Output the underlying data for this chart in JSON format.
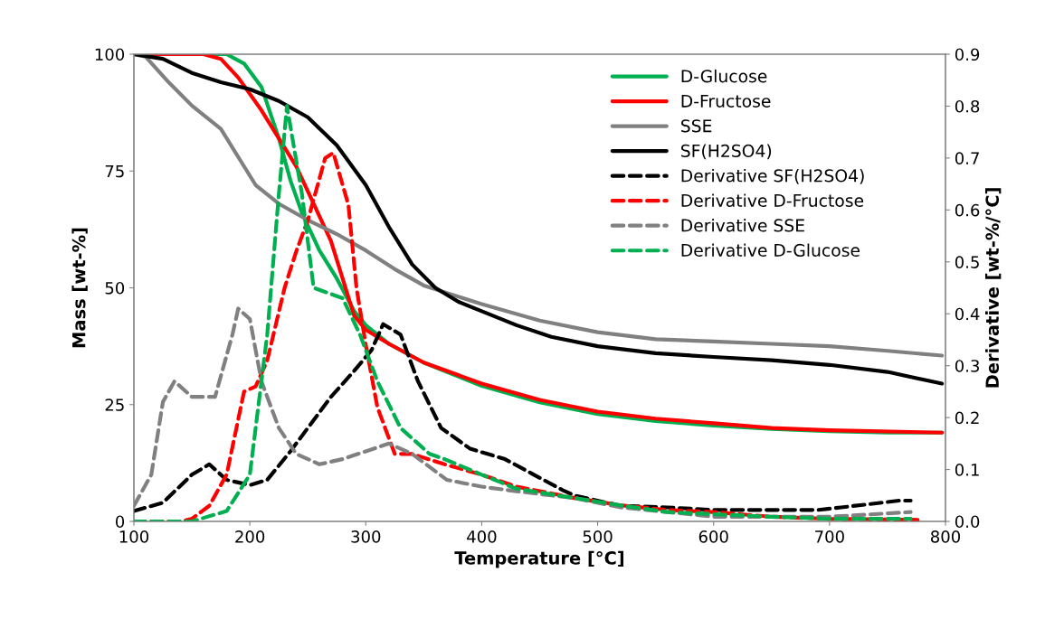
{
  "chart_data": {
    "type": "line",
    "xlabel": "Temperature [°C]",
    "ylabel": "Mass [wt-%]",
    "y2label": "Derivative [wt-%/°C]",
    "xlim": [
      100,
      800
    ],
    "xticks": [
      100,
      200,
      300,
      400,
      500,
      600,
      700,
      800
    ],
    "ylim": [
      0,
      100
    ],
    "yticks": [
      0,
      25,
      50,
      75,
      100
    ],
    "y2lim": [
      0,
      0.9
    ],
    "y2ticks": [
      {
        "value": 0,
        "label": "0.0"
      },
      0.1,
      0.2,
      0.3,
      0.4,
      0.5,
      0.6,
      0.7,
      0.8,
      0.9
    ],
    "grid": false,
    "legend": "top right",
    "marker": "none",
    "series": [
      {
        "name": "D-Glucose",
        "color": "#00b050",
        "line_style": "solid",
        "x": [
          100,
          180,
          195,
          210,
          225,
          235,
          245,
          260,
          275,
          290,
          300,
          320,
          350,
          400,
          450,
          500,
          550,
          600,
          650,
          700,
          750,
          797
        ],
        "values": [
          100,
          100,
          98,
          93,
          82,
          73,
          66,
          58,
          52,
          45,
          42,
          38,
          34,
          29,
          25.5,
          23,
          21.5,
          20.5,
          19.8,
          19.3,
          19,
          19
        ]
      },
      {
        "name": "D-Fructose",
        "color": "#ff0000",
        "line_style": "solid",
        "x": [
          100,
          160,
          175,
          190,
          210,
          225,
          240,
          255,
          270,
          280,
          290,
          300,
          320,
          350,
          400,
          450,
          500,
          550,
          600,
          650,
          700,
          797
        ],
        "values": [
          100,
          100,
          99,
          95,
          88,
          82,
          76,
          68,
          60,
          52,
          44,
          41,
          38,
          34,
          29.5,
          26,
          23.5,
          22,
          21,
          20,
          19.5,
          19
        ]
      },
      {
        "name": "SSE",
        "color": "#808080",
        "line_style": "solid",
        "x": [
          100,
          110,
          130,
          150,
          175,
          190,
          205,
          225,
          250,
          275,
          300,
          325,
          350,
          400,
          450,
          500,
          550,
          600,
          650,
          700,
          750,
          797
        ],
        "values": [
          100,
          99.5,
          94,
          89,
          84,
          78,
          72,
          68,
          64.5,
          61.5,
          58,
          54,
          50.5,
          46.5,
          43,
          40.5,
          39,
          38.5,
          38,
          37.5,
          36.5,
          35.5
        ]
      },
      {
        "name": "SF(H2SO4)",
        "color": "#000000",
        "line_style": "solid",
        "x": [
          100,
          125,
          150,
          175,
          200,
          225,
          250,
          275,
          300,
          320,
          340,
          360,
          380,
          400,
          430,
          460,
          500,
          550,
          600,
          650,
          700,
          750,
          797
        ],
        "values": [
          100,
          99,
          96,
          94,
          92.5,
          90,
          86.5,
          80.5,
          72,
          63,
          55,
          50,
          47,
          45,
          42,
          39.5,
          37.5,
          36,
          35.2,
          34.5,
          33.5,
          32,
          29.5
        ]
      },
      {
        "name": "Derivative SF(H2SO4)",
        "color": "#000000",
        "line_style": "dashed",
        "axis": "y2",
        "x": [
          100,
          125,
          150,
          165,
          180,
          200,
          215,
          235,
          250,
          270,
          290,
          305,
          315,
          330,
          345,
          365,
          390,
          420,
          445,
          470,
          480,
          520,
          560,
          600,
          640,
          690,
          710,
          760,
          770
        ],
        "values": [
          0.02,
          0.036,
          0.09,
          0.11,
          0.08,
          0.07,
          0.08,
          0.135,
          0.18,
          0.24,
          0.29,
          0.33,
          0.38,
          0.36,
          0.27,
          0.18,
          0.14,
          0.12,
          0.09,
          0.06,
          0.05,
          0.03,
          0.027,
          0.022,
          0.022,
          0.022,
          0.027,
          0.04,
          0.04
        ]
      },
      {
        "name": "Derivative D-Fructose",
        "color": "#ff0000",
        "line_style": "dashed",
        "axis": "y2",
        "x": [
          100,
          140,
          150,
          165,
          180,
          195,
          205,
          215,
          230,
          240,
          250,
          265,
          272,
          285,
          292,
          300,
          310,
          325,
          340,
          368,
          400,
          430,
          460,
          480,
          520,
          560,
          600,
          650,
          700,
          776
        ],
        "values": [
          0,
          0,
          0.005,
          0.03,
          0.09,
          0.25,
          0.26,
          0.31,
          0.45,
          0.52,
          0.58,
          0.7,
          0.71,
          0.61,
          0.45,
          0.34,
          0.22,
          0.13,
          0.13,
          0.11,
          0.09,
          0.067,
          0.054,
          0.045,
          0.031,
          0.022,
          0.018,
          0.009,
          0.005,
          0.003
        ]
      },
      {
        "name": "Derivative SSE",
        "color": "#808080",
        "line_style": "dashed",
        "axis": "y2",
        "x": [
          100,
          115,
          125,
          135,
          150,
          170,
          185,
          190,
          200,
          210,
          225,
          240,
          260,
          280,
          300,
          320,
          340,
          370,
          400,
          430,
          460,
          480,
          520,
          560,
          600,
          650,
          700,
          770
        ],
        "values": [
          0.03,
          0.09,
          0.23,
          0.27,
          0.24,
          0.24,
          0.36,
          0.41,
          0.39,
          0.27,
          0.18,
          0.13,
          0.11,
          0.12,
          0.135,
          0.15,
          0.13,
          0.08,
          0.067,
          0.058,
          0.05,
          0.045,
          0.027,
          0.018,
          0.009,
          0.009,
          0.009,
          0.018
        ]
      },
      {
        "name": "Derivative D-Glucose",
        "color": "#00b050",
        "line_style": "dashed",
        "axis": "y2",
        "x": [
          100,
          150,
          180,
          200,
          215,
          225,
          232,
          245,
          255,
          280,
          295,
          310,
          330,
          355,
          368,
          400,
          430,
          480,
          520,
          560,
          600,
          650,
          700,
          770
        ],
        "values": [
          0,
          0,
          0.02,
          0.09,
          0.36,
          0.63,
          0.8,
          0.63,
          0.45,
          0.43,
          0.36,
          0.27,
          0.18,
          0.13,
          0.12,
          0.09,
          0.063,
          0.045,
          0.031,
          0.018,
          0.014,
          0.009,
          0.005,
          0.005
        ]
      }
    ]
  }
}
